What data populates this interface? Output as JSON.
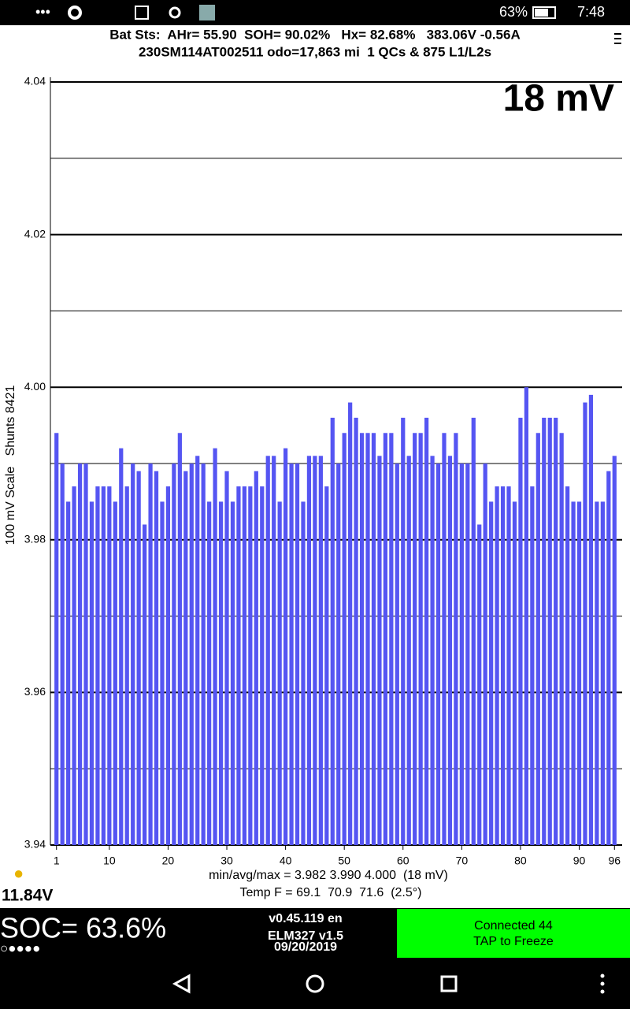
{
  "status_bar": {
    "battery": "63%",
    "time": "7:48"
  },
  "header": {
    "line1": "Bat Sts:  AHr= 55.90  SOH= 90.02%   Hx= 82.68%   383.06V -0.56A",
    "line2": "230SM114AT002511 odo=17,863 mi  1 QCs & 875 L1/L2s"
  },
  "chart_data": {
    "type": "bar",
    "annotation": "18 mV",
    "y_label": "100 mV Scale   Shunts 8421",
    "color": "#5555f2",
    "x": [
      1,
      2,
      3,
      4,
      5,
      6,
      7,
      8,
      9,
      10,
      11,
      12,
      13,
      14,
      15,
      16,
      17,
      18,
      19,
      20,
      21,
      22,
      23,
      24,
      25,
      26,
      27,
      28,
      29,
      30,
      31,
      32,
      33,
      34,
      35,
      36,
      37,
      38,
      39,
      40,
      41,
      42,
      43,
      44,
      45,
      46,
      47,
      48,
      49,
      50,
      51,
      52,
      53,
      54,
      55,
      56,
      57,
      58,
      59,
      60,
      61,
      62,
      63,
      64,
      65,
      66,
      67,
      68,
      69,
      70,
      71,
      72,
      73,
      74,
      75,
      76,
      77,
      78,
      79,
      80,
      81,
      82,
      83,
      84,
      85,
      86,
      87,
      88,
      89,
      90,
      91,
      92,
      93,
      94,
      95,
      96
    ],
    "values": [
      3.994,
      3.99,
      3.985,
      3.987,
      3.99,
      3.99,
      3.985,
      3.987,
      3.987,
      3.987,
      3.985,
      3.992,
      3.987,
      3.99,
      3.989,
      3.982,
      3.99,
      3.989,
      3.985,
      3.987,
      3.99,
      3.994,
      3.989,
      3.99,
      3.991,
      3.99,
      3.985,
      3.992,
      3.985,
      3.989,
      3.985,
      3.987,
      3.987,
      3.987,
      3.989,
      3.987,
      3.991,
      3.991,
      3.985,
      3.992,
      3.99,
      3.99,
      3.985,
      3.991,
      3.991,
      3.991,
      3.987,
      3.996,
      3.99,
      3.994,
      3.998,
      3.996,
      3.994,
      3.994,
      3.994,
      3.991,
      3.994,
      3.994,
      3.99,
      3.996,
      3.991,
      3.994,
      3.994,
      3.996,
      3.991,
      3.99,
      3.994,
      3.991,
      3.994,
      3.99,
      3.99,
      3.996,
      3.982,
      3.99,
      3.985,
      3.987,
      3.987,
      3.987,
      3.985,
      3.996,
      4.0,
      3.987,
      3.994,
      3.996,
      3.996,
      3.996,
      3.994,
      3.987,
      3.985,
      3.985,
      3.998,
      3.999,
      3.985,
      3.985,
      3.989,
      3.991
    ],
    "xlim": [
      0.5,
      96.5
    ],
    "xticks": [
      1,
      10,
      20,
      30,
      40,
      50,
      60,
      70,
      80,
      90,
      96
    ],
    "ylim": [
      3.94,
      4.04
    ],
    "yticks": [
      4.04,
      4.02,
      {
        "value": 4,
        "label": "4.00"
      },
      3.98,
      3.96,
      3.94
    ],
    "minor_yticks": [
      4.03,
      4.01,
      3.99,
      3.97,
      3.95
    ],
    "stats": [
      "min/avg/max = 3.982 3.990 4.000  (18 mV)",
      "Temp F = 69.1  70.9  71.6  (2.5°)"
    ]
  },
  "footer": {
    "aux_voltage": "11.84V",
    "soc": "SOC= 63.6%",
    "version": [
      "v0.45.119 en",
      "ELM327 v1.5",
      "09/20/2019"
    ],
    "status": [
      "Connected 44",
      "TAP to Freeze"
    ]
  }
}
